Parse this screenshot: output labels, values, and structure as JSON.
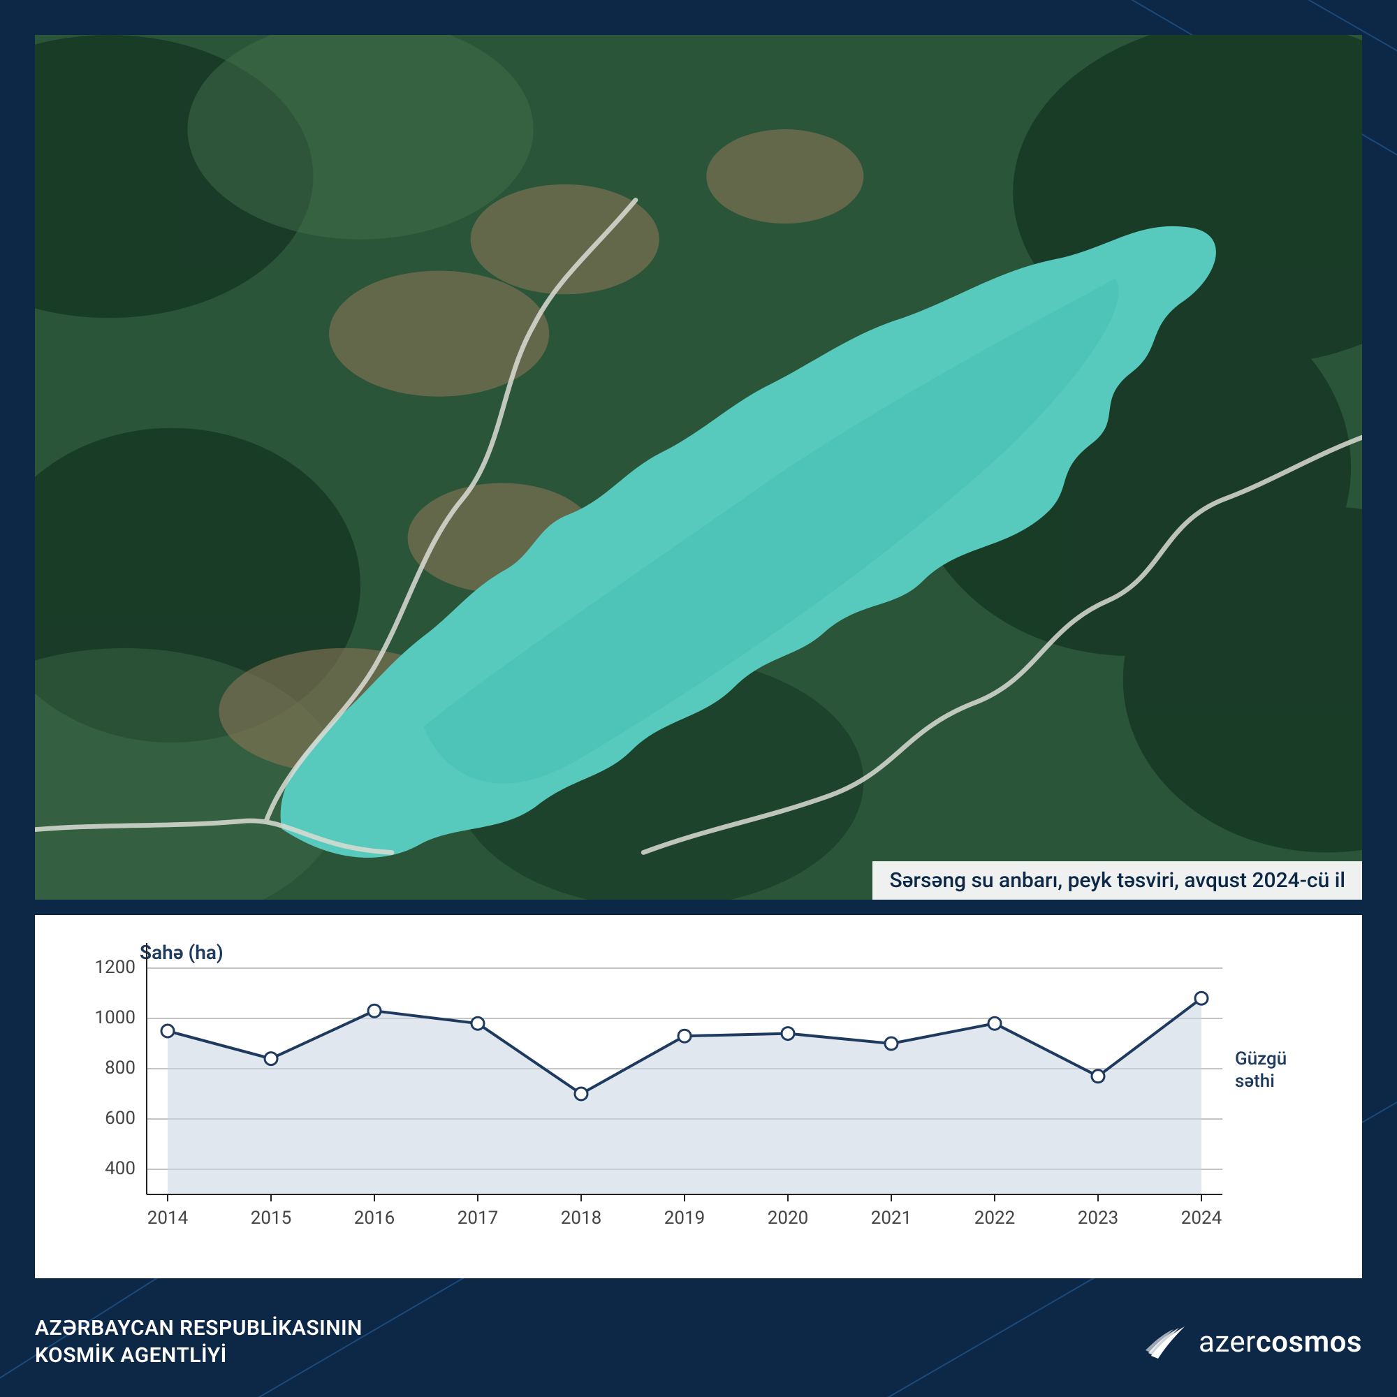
{
  "page": {
    "bg_color": "#0d2847",
    "accent_line_color": "#1a4a7a"
  },
  "satellite": {
    "caption": "Sərsəng su anbarı, peyk təsviri, avqust 2024-cü il",
    "forest_base": "#2d5a3d",
    "forest_dark": "#1a3d28",
    "forest_light": "#4a7a52",
    "bare_ground": "#8a7a5a",
    "water_color": "#5dd4c8",
    "water_deep": "#4ac8bc",
    "road_color": "#e8e8e0"
  },
  "chart": {
    "type": "line-area",
    "y_title": "Sahə (ha)",
    "right_label_line1": "Güzgü",
    "right_label_line2": "səthi",
    "x_labels": [
      "2014",
      "2015",
      "2016",
      "2017",
      "2018",
      "2019",
      "2020",
      "2021",
      "2022",
      "2023",
      "2024"
    ],
    "x_indices": [
      0,
      1,
      2,
      3,
      4,
      5,
      6,
      7,
      8,
      9,
      10
    ],
    "y_ticks": [
      400,
      600,
      800,
      1000,
      1200
    ],
    "ylim_min": 300,
    "ylim_max": 1300,
    "values": [
      950,
      840,
      1030,
      980,
      700,
      930,
      940,
      900,
      980,
      770,
      1080
    ],
    "line_color": "#1e3a5f",
    "line_width": 4,
    "marker_fill": "#ffffff",
    "marker_stroke": "#1e3a5f",
    "marker_radius": 9,
    "marker_stroke_width": 3,
    "area_fill": "#c8d4e2",
    "area_opacity": 0.55,
    "grid_color": "#888888",
    "grid_width": 1,
    "frame_color": "#222222",
    "frame_width": 2,
    "tick_font_size": 26,
    "title_font_size": 28,
    "title_color": "#1e3a5f",
    "label_color": "#444444"
  },
  "footer": {
    "line1": "AZƏRBAYCAN RESPUBLİKASININ",
    "line2": "KOSMİK AGENTLİYİ",
    "logo_prefix": "azer",
    "logo_suffix": "cosmos"
  }
}
